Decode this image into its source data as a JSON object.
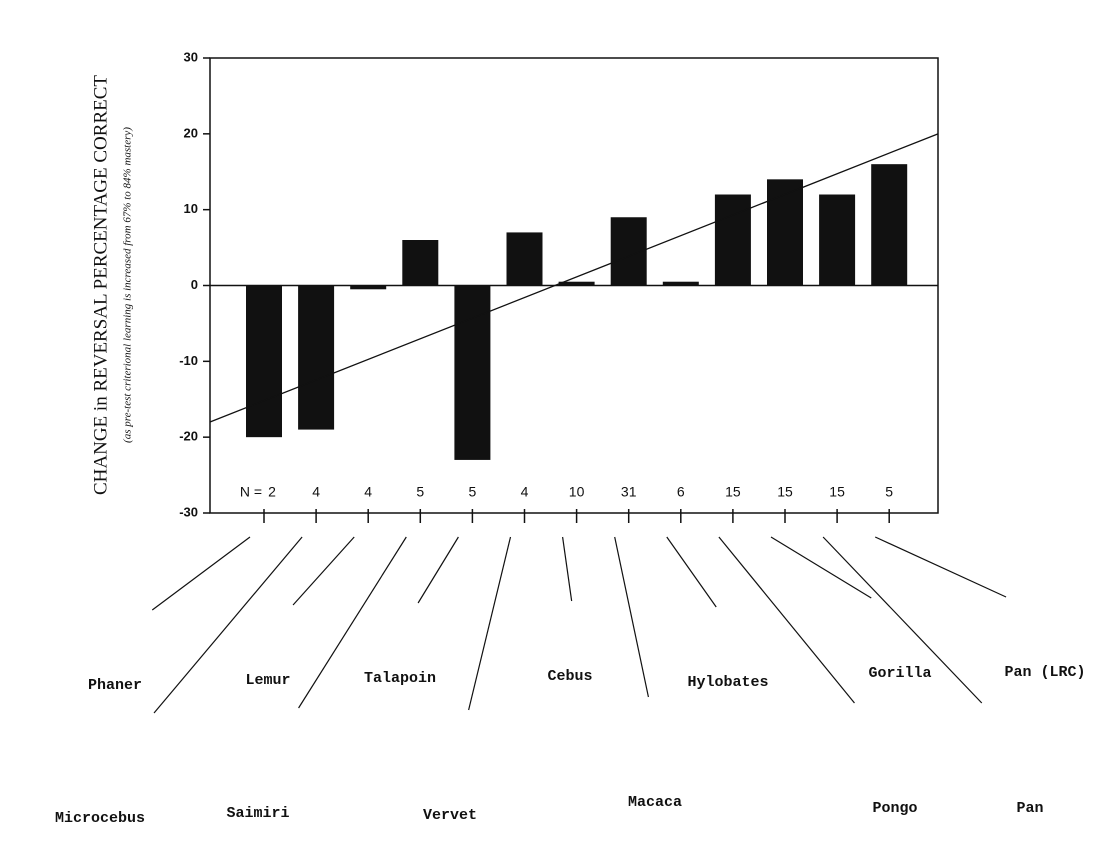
{
  "chart_data": {
    "type": "bar",
    "ylabel": "CHANGE in REVERSAL PERCENTAGE CORRECT",
    "ylabel_sub": "(as pre-test criterional learning is increased from 67% to 84% mastery)",
    "categories": [
      "Phaner",
      "Microcebus",
      "Lemur",
      "Saimiri",
      "Talapoin",
      "Vervet",
      "Cebus",
      "Macaca",
      "Hylobates",
      "Pongo",
      "Gorilla",
      "Pan",
      "Pan (LRC)"
    ],
    "values": [
      -20,
      -19,
      -0.5,
      6,
      -23,
      7,
      0.5,
      9,
      0.5,
      12,
      14,
      12,
      16
    ],
    "n_prefix": "N =",
    "n": [
      2,
      4,
      4,
      5,
      5,
      4,
      10,
      31,
      6,
      15,
      15,
      15,
      5
    ],
    "trendline": [
      -18,
      20
    ],
    "color": "#111111",
    "ylim": [
      -30,
      30
    ],
    "yticks": [
      -30,
      -20,
      -10,
      0,
      10,
      20,
      30
    ]
  }
}
